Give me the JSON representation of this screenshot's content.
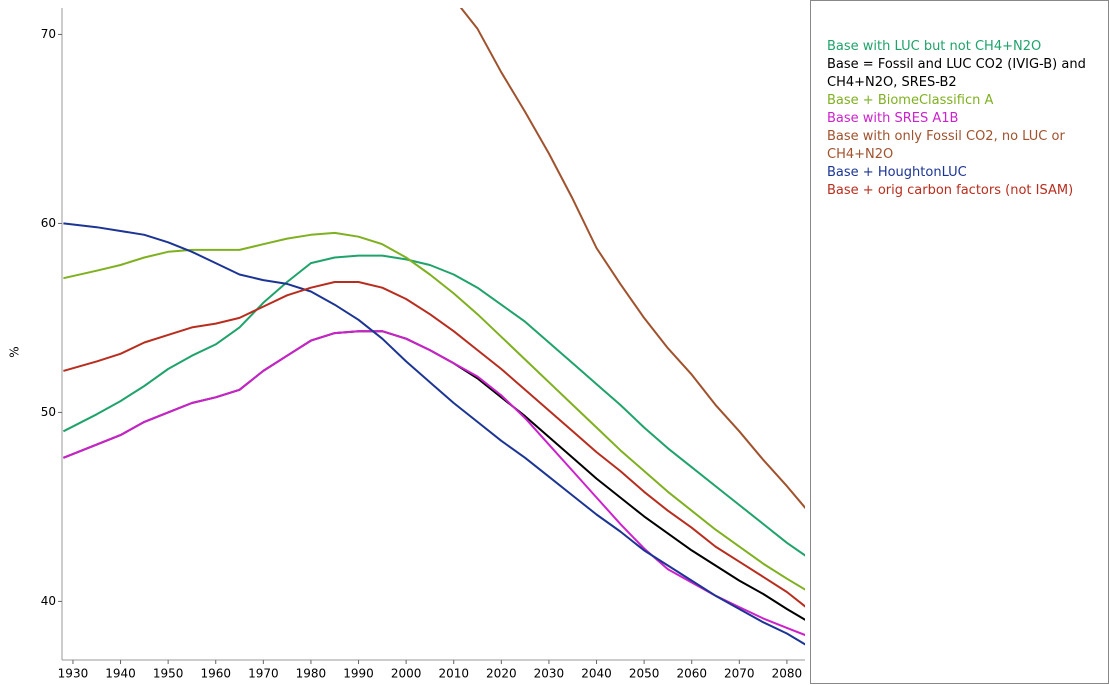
{
  "chart_data": {
    "type": "line",
    "y_label": "%",
    "x": [
      1928,
      1935,
      1940,
      1945,
      1950,
      1955,
      1960,
      1965,
      1970,
      1975,
      1980,
      1985,
      1990,
      1995,
      2000,
      2005,
      2010,
      2015,
      2020,
      2025,
      2030,
      2035,
      2040,
      2045,
      2050,
      2055,
      2060,
      2065,
      2070,
      2075,
      2080,
      2084
    ],
    "xlim": [
      1927.7,
      2083.8
    ],
    "xticks": [
      1930,
      1940,
      1950,
      1960,
      1970,
      1980,
      1990,
      2000,
      2010,
      2020,
      2030,
      2040,
      2050,
      2060,
      2070,
      2080
    ],
    "ylim": [
      36.9,
      71.4
    ],
    "yticks": [
      40,
      50,
      60,
      70
    ],
    "series": [
      {
        "name": "Base with LUC but not CH4+N2O",
        "color": "#1fa36a",
        "values": [
          49.0,
          49.9,
          50.6,
          51.4,
          52.3,
          53.0,
          53.6,
          54.5,
          55.8,
          56.9,
          57.9,
          58.2,
          58.3,
          58.3,
          58.1,
          57.8,
          57.3,
          56.6,
          55.7,
          54.8,
          53.7,
          52.6,
          51.5,
          50.4,
          49.2,
          48.1,
          47.1,
          46.1,
          45.1,
          44.1,
          43.1,
          42.4
        ]
      },
      {
        "name": "Base = Fossil and LUC CO2 (IVIG-B) and CH4+N2O, SRES-B2",
        "color": "#000000",
        "values": [
          47.6,
          48.3,
          48.8,
          49.5,
          50.0,
          50.5,
          50.8,
          51.2,
          52.2,
          53.0,
          53.8,
          54.2,
          54.3,
          54.3,
          53.9,
          53.3,
          52.6,
          51.8,
          50.8,
          49.8,
          48.7,
          47.6,
          46.5,
          45.5,
          44.5,
          43.6,
          42.7,
          41.9,
          41.1,
          40.4,
          39.6,
          39.0
        ]
      },
      {
        "name": "Base + BiomeClassificn A",
        "color": "#7fb020",
        "values": [
          57.1,
          57.5,
          57.8,
          58.2,
          58.5,
          58.6,
          58.6,
          58.6,
          58.9,
          59.2,
          59.4,
          59.5,
          59.3,
          58.9,
          58.2,
          57.3,
          56.3,
          55.2,
          54.0,
          52.8,
          51.6,
          50.4,
          49.2,
          48.0,
          46.9,
          45.8,
          44.8,
          43.8,
          42.9,
          42.0,
          41.2,
          40.6
        ]
      },
      {
        "name": "Base with SRES A1B",
        "color": "#cc22cc",
        "values": [
          47.6,
          48.3,
          48.8,
          49.5,
          50.0,
          50.5,
          50.8,
          51.2,
          52.2,
          53.0,
          53.8,
          54.2,
          54.3,
          54.3,
          53.9,
          53.3,
          52.6,
          51.9,
          50.9,
          49.7,
          48.3,
          46.9,
          45.5,
          44.1,
          42.8,
          41.7,
          41.0,
          40.3,
          39.7,
          39.1,
          38.6,
          38.2
        ]
      },
      {
        "name": "Base with only Fossil CO2, no LUC or CH4+N2O",
        "color": "#a0522d",
        "values": [
          null,
          null,
          null,
          null,
          null,
          null,
          null,
          null,
          null,
          null,
          null,
          null,
          null,
          null,
          null,
          null,
          71.9,
          70.3,
          68.0,
          65.9,
          63.7,
          61.3,
          58.7,
          56.8,
          55.0,
          53.4,
          52.0,
          50.4,
          49.0,
          47.5,
          46.1,
          44.9
        ]
      },
      {
        "name": "Base + HoughtonLUC",
        "color": "#1c3594",
        "values": [
          60.0,
          59.8,
          59.6,
          59.4,
          59.0,
          58.5,
          57.9,
          57.3,
          57.0,
          56.8,
          56.4,
          55.7,
          54.9,
          53.9,
          52.7,
          51.6,
          50.5,
          49.5,
          48.5,
          47.6,
          46.6,
          45.6,
          44.6,
          43.7,
          42.7,
          41.9,
          41.1,
          40.3,
          39.6,
          38.9,
          38.3,
          37.7
        ]
      },
      {
        "name": "Base + orig carbon factors (not ISAM)",
        "color": "#b82d1e",
        "values": [
          52.2,
          52.7,
          53.1,
          53.7,
          54.1,
          54.5,
          54.7,
          55.0,
          55.6,
          56.2,
          56.6,
          56.9,
          56.9,
          56.6,
          56.0,
          55.2,
          54.3,
          53.3,
          52.3,
          51.2,
          50.1,
          49.0,
          47.9,
          46.9,
          45.8,
          44.8,
          43.9,
          42.9,
          42.1,
          41.3,
          40.5,
          39.7
        ]
      }
    ]
  }
}
